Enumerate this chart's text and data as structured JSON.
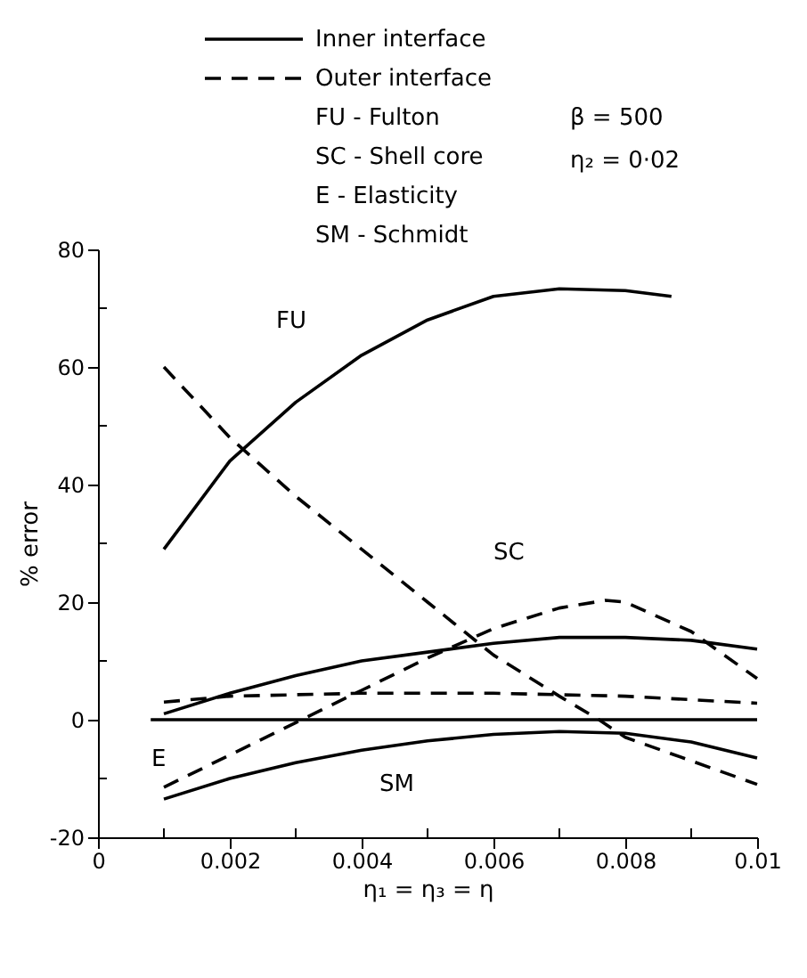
{
  "chart_data": {
    "type": "line",
    "xlabel": "η₁ = η₃ = η",
    "ylabel": "% error",
    "xlim": [
      0,
      0.01
    ],
    "ylim": [
      -20,
      80
    ],
    "xticks": [
      0,
      {
        "value": 0.001,
        "label": null
      },
      0.002,
      {
        "value": 0.003,
        "label": null
      },
      0.004,
      {
        "value": 0.005,
        "label": null
      },
      0.006,
      {
        "value": 0.007,
        "label": null
      },
      0.008,
      {
        "value": 0.009,
        "label": null
      },
      0.01
    ],
    "yticks": [
      -20,
      {
        "value": -10,
        "label": null
      },
      0,
      {
        "value": 10,
        "label": null
      },
      20,
      {
        "value": 30,
        "label": null
      },
      40,
      {
        "value": 50,
        "label": null
      },
      60,
      {
        "value": 70,
        "label": null
      },
      80
    ],
    "grid": false,
    "legend": "top left",
    "marker": "none",
    "series": [
      {
        "name": "Inner interface",
        "color": "#000000",
        "line_style": "solid",
        "x": [
          0.001,
          0.002,
          0.003,
          0.004,
          0.005,
          0.006,
          0.007,
          0.008,
          0.0087
        ],
        "values": [
          29,
          44,
          54,
          62,
          68,
          72,
          73.3,
          73,
          72
        ]
      },
      {
        "name": "Outer interface",
        "color": "#000000",
        "line_style": "dashed",
        "x": [
          0.001,
          0.002,
          0.003,
          0.004,
          0.005,
          0.006,
          0.007,
          0.0076,
          0.008,
          0.009,
          0.01
        ],
        "values": [
          60,
          48,
          38,
          29,
          20,
          11,
          4,
          0,
          -3,
          -7,
          -11
        ]
      },
      {
        "color": "#000000",
        "line_style": "solid",
        "x": [
          0.001,
          0.002,
          0.003,
          0.004,
          0.005,
          0.006,
          0.007,
          0.008,
          0.009,
          0.01
        ],
        "values": [
          1,
          4.5,
          7.5,
          10,
          11.5,
          13,
          14,
          14,
          13.5,
          12
        ]
      },
      {
        "color": "#000000",
        "line_style": "dashed",
        "x": [
          0.001,
          0.002,
          0.004,
          0.006,
          0.008,
          0.01
        ],
        "values": [
          3,
          4,
          4.5,
          4.5,
          4,
          2.8
        ]
      },
      {
        "color": "#000000",
        "line_style": "solid",
        "x": [
          0.0008,
          0.01
        ],
        "values": [
          0,
          0
        ]
      },
      {
        "color": "#000000",
        "line_style": "solid",
        "x": [
          0.001,
          0.002,
          0.003,
          0.004,
          0.005,
          0.006,
          0.007,
          0.008,
          0.009,
          0.01
        ],
        "values": [
          -13.5,
          -10,
          -7.3,
          -5.2,
          -3.6,
          -2.5,
          -2,
          -2.3,
          -3.8,
          -6.5
        ]
      },
      {
        "color": "#000000",
        "line_style": "dashed",
        "x": [
          0.001,
          0.002,
          0.003,
          0.004,
          0.005,
          0.006,
          0.007,
          0.0077,
          0.008,
          0.009,
          0.01
        ],
        "values": [
          -11.5,
          -6,
          -0.5,
          5,
          10.5,
          15.5,
          19,
          20.3,
          20,
          15,
          7
        ]
      }
    ],
    "annotations": [
      "FU - Fulton",
      "SC - Shell core",
      "E - Elasticity",
      "SM - Schmidt",
      "β = 500",
      "η₂ = 0·02",
      "FU",
      "SC",
      "E",
      "SM"
    ]
  }
}
